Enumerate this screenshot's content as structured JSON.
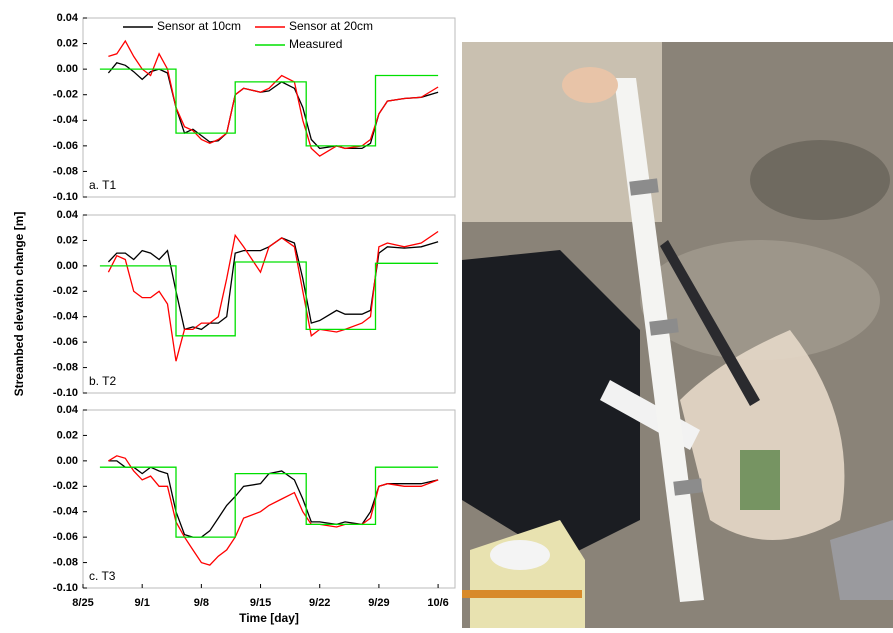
{
  "chart_data": [
    {
      "type": "line",
      "panel_label": "a. T1",
      "xlim": [
        0,
        44
      ],
      "ylim": [
        -0.1,
        0.04
      ],
      "yticks": [
        0.04,
        0.02,
        {
          "value": 0,
          "label": "0.00"
        },
        -0.02,
        -0.04,
        -0.06,
        -0.08,
        {
          "value": -0.1,
          "label": "-0.10"
        }
      ],
      "legend": "top-right",
      "series": [
        {
          "name": "Sensor at 10cm",
          "color": "#000000",
          "x": [
            3,
            4,
            5,
            6,
            7,
            8,
            9,
            10,
            11,
            12,
            13,
            14,
            15,
            16,
            17,
            18,
            19,
            21,
            22,
            23.5,
            25,
            26,
            27,
            28,
            30,
            31,
            33,
            34,
            35,
            36,
            38,
            40,
            42
          ],
          "values": [
            -0.003,
            0.005,
            0.003,
            -0.002,
            -0.008,
            -0.002,
            0,
            -0.003,
            -0.03,
            -0.05,
            -0.047,
            -0.052,
            -0.057,
            -0.056,
            -0.05,
            -0.02,
            -0.015,
            -0.018,
            -0.017,
            -0.01,
            -0.015,
            -0.03,
            -0.055,
            -0.062,
            -0.06,
            -0.062,
            -0.062,
            -0.058,
            -0.035,
            -0.025,
            -0.023,
            -0.022,
            -0.018
          ]
        },
        {
          "name": "Sensor at 20cm",
          "color": "#ff0000",
          "x": [
            3,
            4,
            5,
            6,
            7,
            8,
            9,
            10,
            11,
            12,
            13,
            14,
            15,
            16,
            17,
            18,
            19,
            21,
            22,
            23.5,
            25,
            26,
            27,
            28,
            30,
            31,
            33,
            34,
            35,
            36,
            38,
            40,
            42
          ],
          "values": [
            0.01,
            0.012,
            0.022,
            0.01,
            0,
            -0.005,
            0.012,
            0,
            -0.03,
            -0.045,
            -0.048,
            -0.055,
            -0.058,
            -0.055,
            -0.05,
            -0.02,
            -0.015,
            -0.018,
            -0.015,
            -0.005,
            -0.01,
            -0.04,
            -0.062,
            -0.068,
            -0.06,
            -0.062,
            -0.06,
            -0.055,
            -0.035,
            -0.025,
            -0.023,
            -0.022,
            -0.014
          ]
        },
        {
          "name": "Measured",
          "color": "#00e000",
          "x": [
            2,
            11,
            11,
            18,
            18,
            26.4,
            26.4,
            34.6,
            34.6,
            42
          ],
          "values": [
            0,
            0,
            -0.05,
            -0.05,
            -0.01,
            -0.01,
            -0.06,
            -0.06,
            -0.005,
            -0.005
          ]
        }
      ]
    },
    {
      "type": "line",
      "panel_label": "b. T2",
      "ylabel": "Streambed elevation change [m]",
      "xlim": [
        0,
        44
      ],
      "ylim": [
        -0.1,
        0.04
      ],
      "yticks": [
        0.04,
        0.02,
        {
          "value": 0,
          "label": "0.00"
        },
        -0.02,
        -0.04,
        -0.06,
        -0.08,
        {
          "value": -0.1,
          "label": "-0.10"
        }
      ],
      "series": [
        {
          "color": "#000000",
          "x": [
            3,
            4,
            5,
            6,
            7,
            8,
            9,
            10,
            11,
            12,
            13,
            14,
            15,
            16,
            17,
            18,
            19,
            21,
            22,
            23.5,
            25,
            26,
            27,
            28,
            30,
            31,
            33,
            34,
            35,
            36,
            38,
            40,
            42
          ],
          "values": [
            0.003,
            0.01,
            0.01,
            0.005,
            0.012,
            0.01,
            0.005,
            0.012,
            -0.02,
            -0.05,
            -0.048,
            -0.05,
            -0.045,
            -0.045,
            -0.04,
            0.01,
            0.012,
            0.012,
            0.015,
            0.022,
            0.018,
            -0.01,
            -0.045,
            -0.043,
            -0.035,
            -0.038,
            -0.038,
            -0.035,
            0.01,
            0.015,
            0.014,
            0.015,
            0.019
          ]
        },
        {
          "color": "#ff0000",
          "x": [
            3,
            4,
            5,
            6,
            7,
            8,
            9,
            10,
            11,
            12,
            13,
            14,
            15,
            16,
            17,
            18,
            19,
            21,
            22,
            23.5,
            25,
            26,
            27,
            28,
            30,
            31,
            33,
            34,
            35,
            36,
            38,
            40,
            42
          ],
          "values": [
            -0.005,
            0.008,
            0.005,
            -0.02,
            -0.025,
            -0.025,
            -0.02,
            -0.03,
            -0.075,
            -0.05,
            -0.05,
            -0.045,
            -0.045,
            -0.04,
            -0.01,
            0.024,
            0.015,
            -0.005,
            0.015,
            0.022,
            0.015,
            -0.02,
            -0.055,
            -0.05,
            -0.052,
            -0.05,
            -0.045,
            -0.04,
            0.015,
            0.018,
            0.015,
            0.018,
            0.027
          ]
        },
        {
          "color": "#00e000",
          "x": [
            2,
            11,
            11,
            18,
            18,
            26.4,
            26.4,
            34.6,
            34.6,
            42
          ],
          "values": [
            0,
            0,
            -0.055,
            -0.055,
            0.003,
            0.003,
            -0.05,
            -0.05,
            0.002,
            0.002
          ]
        }
      ]
    },
    {
      "type": "line",
      "panel_label": "c. T3",
      "xlabel": "Time [day]",
      "xlim": [
        0,
        44
      ],
      "ylim": [
        -0.1,
        0.04
      ],
      "xticks": [
        {
          "value": 0,
          "label": "8/25"
        },
        {
          "value": 7,
          "label": "9/1"
        },
        {
          "value": 14,
          "label": "9/8"
        },
        {
          "value": 21,
          "label": "9/15"
        },
        {
          "value": 28,
          "label": "9/22"
        },
        {
          "value": 35,
          "label": "9/29"
        },
        {
          "value": 42,
          "label": "10/6"
        }
      ],
      "yticks": [
        0.04,
        0.02,
        {
          "value": 0,
          "label": "0.00"
        },
        -0.02,
        -0.04,
        -0.06,
        -0.08,
        {
          "value": -0.1,
          "label": "-0.10"
        }
      ],
      "series": [
        {
          "color": "#000000",
          "x": [
            3,
            4,
            5,
            6,
            7,
            8,
            9,
            10,
            11,
            12,
            13,
            14,
            15,
            16,
            17,
            18,
            19,
            21,
            22,
            23.5,
            25,
            26,
            27,
            28,
            30,
            31,
            33,
            34,
            35,
            36,
            38,
            40,
            42
          ],
          "values": [
            0,
            0,
            -0.005,
            -0.005,
            -0.01,
            -0.005,
            -0.008,
            -0.01,
            -0.04,
            -0.058,
            -0.06,
            -0.06,
            -0.055,
            -0.045,
            -0.035,
            -0.028,
            -0.02,
            -0.018,
            -0.01,
            -0.008,
            -0.015,
            -0.03,
            -0.048,
            -0.048,
            -0.05,
            -0.048,
            -0.05,
            -0.04,
            -0.02,
            -0.018,
            -0.018,
            -0.018,
            -0.015
          ]
        },
        {
          "color": "#ff0000",
          "x": [
            3,
            4,
            5,
            6,
            7,
            8,
            9,
            10,
            11,
            12,
            13,
            14,
            15,
            16,
            17,
            18,
            19,
            21,
            22,
            23.5,
            25,
            26,
            27,
            28,
            30,
            31,
            33,
            34,
            35,
            36,
            38,
            40,
            42
          ],
          "values": [
            0,
            0.004,
            0.002,
            -0.008,
            -0.015,
            -0.012,
            -0.02,
            -0.02,
            -0.048,
            -0.06,
            -0.07,
            -0.08,
            -0.082,
            -0.075,
            -0.07,
            -0.06,
            -0.045,
            -0.04,
            -0.035,
            -0.03,
            -0.025,
            -0.04,
            -0.05,
            -0.05,
            -0.052,
            -0.05,
            -0.05,
            -0.045,
            -0.02,
            -0.018,
            -0.02,
            -0.02,
            -0.015
          ]
        },
        {
          "color": "#00e000",
          "x": [
            2,
            11,
            11,
            18,
            18,
            26.4,
            26.4,
            34.6,
            34.6,
            42
          ],
          "values": [
            -0.005,
            -0.005,
            -0.06,
            -0.06,
            -0.01,
            -0.01,
            -0.05,
            -0.05,
            -0.005,
            -0.005
          ]
        }
      ]
    }
  ]
}
